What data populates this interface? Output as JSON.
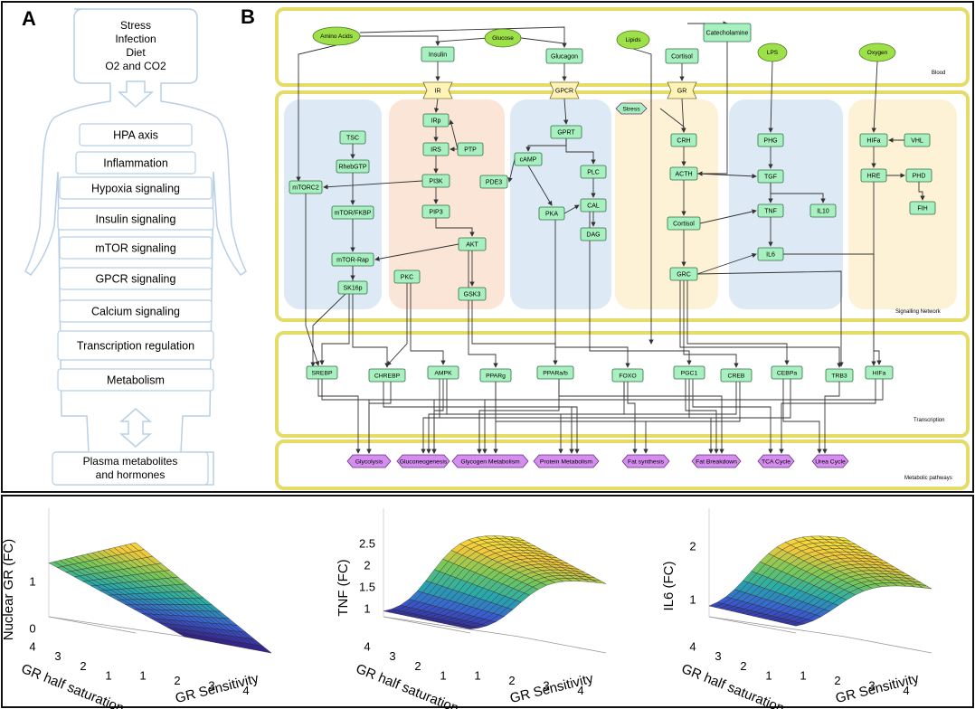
{
  "panel_a": {
    "letter": "A",
    "inputs": [
      "Stress",
      "Infection",
      "Diet",
      "O2 and CO2"
    ],
    "layers": [
      "HPA axis",
      "Inflammation",
      "Hypoxia signaling",
      "Insulin signaling",
      "mTOR  signaling",
      "GPCR signaling",
      "Calcium signaling",
      "Transcription regulation",
      "Metabolism"
    ],
    "outputs": [
      "Plasma metabolites",
      "and hormones"
    ]
  },
  "panel_b": {
    "letter": "B",
    "compartments": {
      "blood": "Blood",
      "signalling": "Signalling Network",
      "transcription": "Transcription",
      "metabolic": "Metabolic pathways"
    },
    "inputs": {
      "amino_acids": "Amino Acids",
      "glucose": "Glucose",
      "lipids": "Lipids",
      "lps": "LPS",
      "oxygen": "Oxygen",
      "stress": "Stress"
    },
    "blood_nodes": {
      "insulin": "Insulin",
      "glucagon": "Glucagon",
      "cortisol": "Cortisol",
      "catecholamine": "Catecholamine"
    },
    "receptors": {
      "ir": "IR",
      "gpcr": "GPCR",
      "gr": "GR"
    },
    "signal_nodes": {
      "irp": "IRp",
      "irs": "IRS",
      "ptp": "PTP",
      "pi3k": "PI3K",
      "pip3": "PIP3",
      "akt": "AKT",
      "pkc": "PKC",
      "gsk3": "GSK3",
      "tsc": "TSC",
      "rhebgtp": "RhebGTP",
      "mtorc2": "mTORC2",
      "mtor_fkbp": "mTOR/FKBP",
      "mtor_rap": "mTOR-Rap",
      "sk16p": "SK16p",
      "gprt": "GPRT",
      "camp": "cAMP",
      "pde3": "PDE3",
      "plc": "PLC",
      "pka": "PKA",
      "cal": "CAL",
      "dag": "DAG",
      "crh": "CRH",
      "acth": "ACTH",
      "cortisol2": "Cortisol",
      "grc": "GRC",
      "phg": "PHG",
      "tgf": "TGF",
      "tnf": "TNF",
      "il10": "IL10",
      "il6": "IL6",
      "hifa": "HIFa",
      "vhl": "VHL",
      "hre": "HRE",
      "phd": "PHD",
      "fih": "FIH"
    },
    "tf_nodes": [
      "SREBP",
      "CHREBP",
      "AMPK",
      "PPARg",
      "PPARa/b",
      "FOXO",
      "PGC1",
      "CREB",
      "CEBPa",
      "TRB3",
      "HIFa"
    ],
    "pathways": [
      "Glycolysis",
      "Gluconeogenesis",
      "Glycogen Metabolism",
      "Protein Metabolism",
      "Fat synthesis",
      "Fat Breakdown",
      "TCA Cycle",
      "Urea Cycle"
    ]
  },
  "surface_plots": [
    {
      "zlabel": "Nuclear GR (FC)",
      "ylabel": "GR half saturation",
      "xlabel": "GR Sensitivity",
      "zticks": [
        "0",
        "1"
      ],
      "yticks": [
        "1",
        "2",
        "3",
        "4"
      ],
      "xticks": [
        "1",
        "2",
        "3",
        "4"
      ]
    },
    {
      "zlabel": "TNF (FC)",
      "ylabel": "GR half saturation",
      "xlabel": "GR Sensitivity",
      "zticks": [
        "1",
        "1.5",
        "2",
        "2.5"
      ],
      "yticks": [
        "1",
        "2",
        "3",
        "4"
      ],
      "xticks": [
        "1",
        "2",
        "3",
        "4"
      ]
    },
    {
      "zlabel": "IL6 (FC)",
      "ylabel": "GR half saturation",
      "xlabel": "GR Sensitivity",
      "zticks": [
        "1",
        "2"
      ],
      "yticks": [
        "1",
        "2",
        "3",
        "4"
      ],
      "xticks": [
        "1",
        "2",
        "3",
        "4"
      ]
    }
  ],
  "colors": {
    "node_fill": "#a8f0c0",
    "input_fill": "#9ee04a",
    "pathway_fill": "#d58ef0",
    "receptor_fill": "#fff4b8",
    "compartment_border": "#e8e070"
  }
}
